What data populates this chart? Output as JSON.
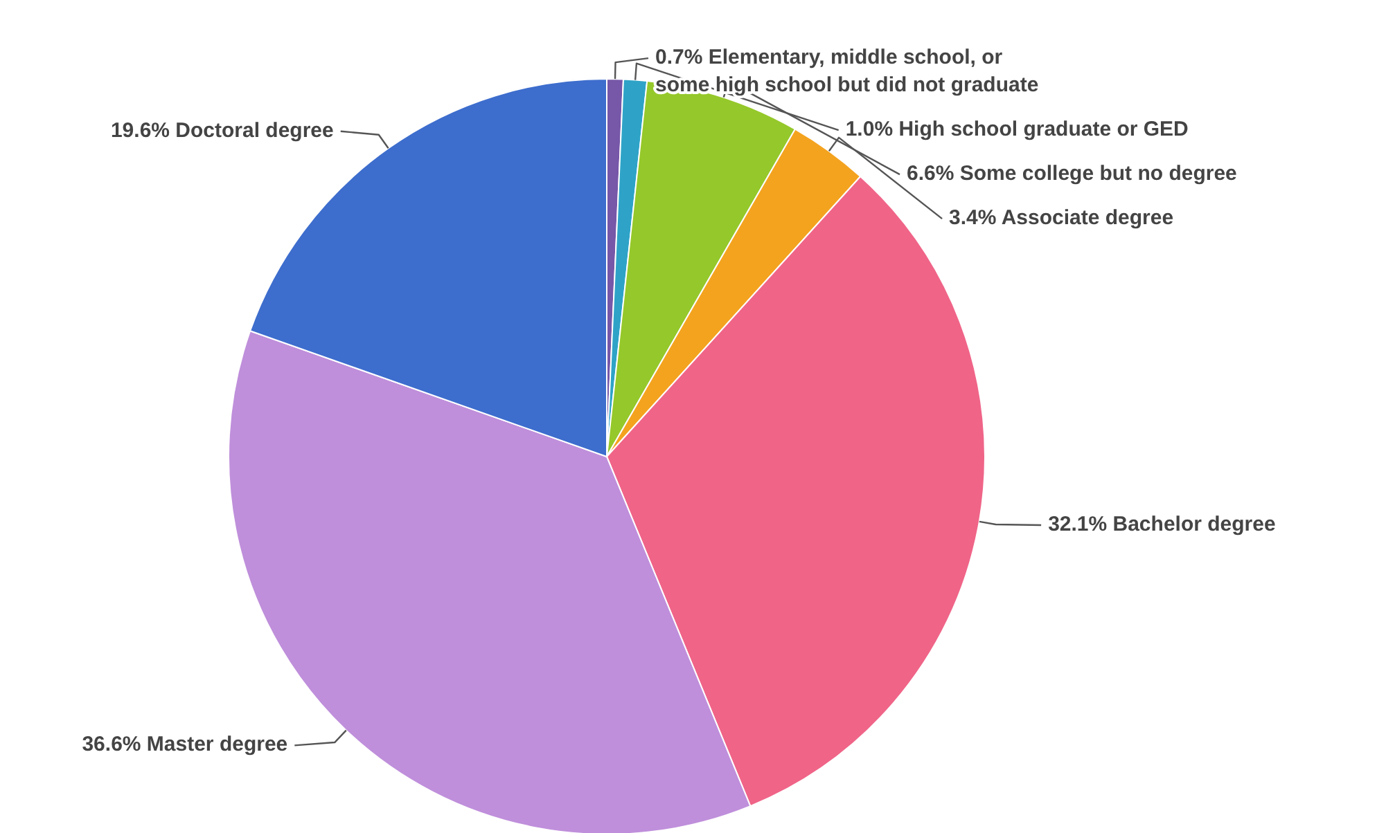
{
  "chart_data": {
    "type": "pie",
    "categories": [
      "Elementary, middle school, or some high school but did not graduate",
      "High school graduate or GED",
      "Some college but no degree",
      "Associate degree",
      "Bachelor degree",
      "Master degree",
      "Doctoral degree"
    ],
    "values": [
      0.7,
      1.0,
      6.6,
      3.4,
      32.1,
      36.6,
      19.6
    ],
    "value_labels": [
      "0.7%",
      "1.0%",
      "6.6%",
      "3.4%",
      "32.1%",
      "36.6%",
      "19.6%"
    ],
    "colors": [
      "#7657a8",
      "#2ea3c7",
      "#95c82a",
      "#f4a31f",
      "#f06488",
      "#bf8fdb",
      "#3d6dcd"
    ]
  }
}
